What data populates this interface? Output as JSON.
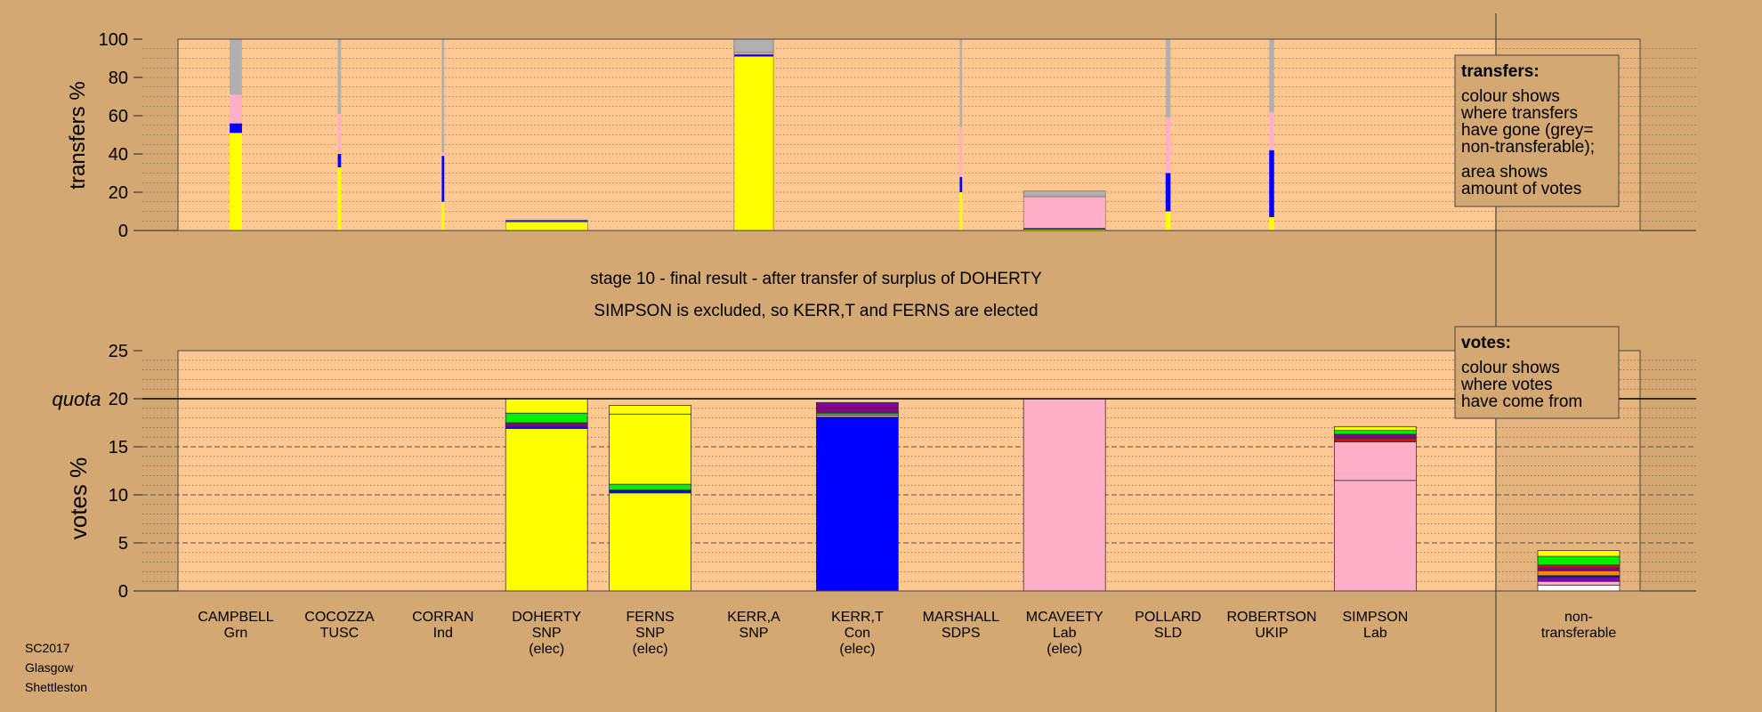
{
  "footer": {
    "line1": "SC2017",
    "line2": "Glasgow",
    "line3": "Shettleston"
  },
  "title": {
    "line1": "stage 10 - final result - after transfer of surplus of DOHERTY",
    "line2": "SIMPSON is excluded, so KERR,T and FERNS are elected"
  },
  "legends": {
    "transfers": {
      "heading": "transfers:",
      "lines": [
        "colour shows",
        "where transfers",
        "have gone (grey=",
        "non-transferable);",
        "area shows",
        "amount of votes"
      ]
    },
    "votes": {
      "heading": "votes:",
      "lines": [
        "colour shows",
        "where votes",
        "have come from"
      ]
    }
  },
  "colors": {
    "background": "#d4a872",
    "plot_bg": "#ffc890",
    "quota_line": "#000000",
    "SNP": "#ffff00",
    "Con": "#0000ff",
    "Lab": "#ffb0c8",
    "Grn": "#00ee00",
    "TUSC": "#d01010",
    "Ind": "#880088",
    "SDPS": "#ffffff",
    "SLD": "#ff8800",
    "UKIP": "#8800aa",
    "nontransferable": "#b0b0b0"
  },
  "chart_data": [
    {
      "type": "bar",
      "subtype": "stacked-variable-width",
      "ylabel": "transfers %",
      "ylim": [
        0,
        100
      ],
      "yticks": [
        0,
        20,
        40,
        60,
        80,
        100
      ],
      "grid": true,
      "categories": [
        "CAMPBELL",
        "COCOZZA",
        "CORRAN",
        "DOHERTY",
        "FERNS",
        "KERR,A",
        "KERR,T",
        "MARSHALL",
        "MCAVEETY",
        "POLLARD",
        "ROBERTSON",
        "SIMPSON"
      ],
      "bars": [
        {
          "category": "CAMPBELL",
          "width_rel": 0.15,
          "segments": [
            {
              "color": "SNP",
              "value": 51
            },
            {
              "color": "Con",
              "value": 5
            },
            {
              "color": "Lab",
              "value": 15
            },
            {
              "color": "nontransferable",
              "value": 29
            }
          ]
        },
        {
          "category": "COCOZZA",
          "width_rel": 0.04,
          "segments": [
            {
              "color": "SNP",
              "value": 33
            },
            {
              "color": "Con",
              "value": 7
            },
            {
              "color": "Lab",
              "value": 21
            },
            {
              "color": "nontransferable",
              "value": 39
            }
          ]
        },
        {
          "category": "CORRAN",
          "width_rel": 0.03,
          "segments": [
            {
              "color": "SNP",
              "value": 15
            },
            {
              "color": "Con",
              "value": 24
            },
            {
              "color": "Lab",
              "value": 2
            },
            {
              "color": "nontransferable",
              "value": 59
            }
          ]
        },
        {
          "category": "DOHERTY",
          "width_rel": 1.0,
          "segments": [
            {
              "color": "SNP",
              "value": 4.5
            },
            {
              "color": "Con",
              "value": 0.5
            },
            {
              "color": "Lab",
              "value": 0.3
            },
            {
              "color": "nontransferable",
              "value": 0.2
            }
          ]
        },
        {
          "category": "FERNS",
          "width_rel": 0,
          "segments": []
        },
        {
          "category": "KERR,A",
          "width_rel": 0.48,
          "segments": [
            {
              "color": "SNP",
              "value": 91
            },
            {
              "color": "Con",
              "value": 1
            },
            {
              "color": "Lab",
              "value": 1
            },
            {
              "color": "nontransferable",
              "value": 7
            }
          ]
        },
        {
          "category": "KERR,T",
          "width_rel": 0,
          "segments": []
        },
        {
          "category": "MARSHALL",
          "width_rel": 0.03,
          "segments": [
            {
              "color": "SNP",
              "value": 20
            },
            {
              "color": "Con",
              "value": 8
            },
            {
              "color": "Lab",
              "value": 26
            },
            {
              "color": "nontransferable",
              "value": 46
            }
          ]
        },
        {
          "category": "MCAVEETY",
          "width_rel": 1.0,
          "segments": [
            {
              "color": "SNP",
              "value": 0.6
            },
            {
              "color": "Con",
              "value": 0.6
            },
            {
              "color": "Lab",
              "value": 16.5
            },
            {
              "color": "nontransferable",
              "value": 3
            }
          ]
        },
        {
          "category": "POLLARD",
          "width_rel": 0.06,
          "segments": [
            {
              "color": "SNP",
              "value": 10
            },
            {
              "color": "Con",
              "value": 20
            },
            {
              "color": "Lab",
              "value": 29
            },
            {
              "color": "nontransferable",
              "value": 41
            }
          ]
        },
        {
          "category": "ROBERTSON",
          "width_rel": 0.06,
          "segments": [
            {
              "color": "SNP",
              "value": 7
            },
            {
              "color": "Con",
              "value": 35
            },
            {
              "color": "Lab",
              "value": 20
            },
            {
              "color": "nontransferable",
              "value": 38
            }
          ]
        },
        {
          "category": "SIMPSON",
          "width_rel": 0,
          "segments": []
        }
      ]
    },
    {
      "type": "bar",
      "subtype": "stacked",
      "ylabel": "votes %",
      "ylim": [
        0,
        25
      ],
      "yticks": [
        0,
        5,
        10,
        15,
        20,
        25
      ],
      "quota": 20,
      "quota_label": "quota",
      "grid": true,
      "categories": [
        "CAMPBELL",
        "COCOZZA",
        "CORRAN",
        "DOHERTY",
        "FERNS",
        "KERR,A",
        "KERR,T",
        "MARSHALL",
        "MCAVEETY",
        "POLLARD",
        "ROBERTSON",
        "SIMPSON",
        "non-transferable"
      ],
      "category_lines": [
        [
          "CAMPBELL",
          "Grn"
        ],
        [
          "COCOZZA",
          "TUSC"
        ],
        [
          "CORRAN",
          "Ind"
        ],
        [
          "DOHERTY",
          "SNP",
          "(elec)"
        ],
        [
          "FERNS",
          "SNP",
          "(elec)"
        ],
        [
          "KERR,A",
          "SNP"
        ],
        [
          "KERR,T",
          "Con",
          "(elec)"
        ],
        [
          "MARSHALL",
          "SDPS"
        ],
        [
          "MCAVEETY",
          "Lab",
          "(elec)"
        ],
        [
          "POLLARD",
          "SLD"
        ],
        [
          "ROBERTSON",
          "UKIP"
        ],
        [
          "SIMPSON",
          "Lab"
        ],
        [
          "non-",
          "transferable"
        ]
      ],
      "series": [
        {
          "category": "DOHERTY",
          "segments": [
            {
              "color": "SNP",
              "value": 16.9
            },
            {
              "color": "Con",
              "value": 0.2
            },
            {
              "color": "Grn",
              "value": 0
            },
            {
              "color": "Ind",
              "value": 0.3
            },
            {
              "color": "TUSC",
              "value": 0.1
            },
            {
              "color": "Grn",
              "value": 1.0
            },
            {
              "color": "SNP",
              "value": 1.5
            }
          ]
        },
        {
          "category": "FERNS",
          "segments": [
            {
              "color": "SNP",
              "value": 10.2
            },
            {
              "color": "Con",
              "value": 0.3
            },
            {
              "color": "Grn",
              "value": 0.6
            },
            {
              "color": "SNP",
              "value": 7.3
            },
            {
              "color": "SNP",
              "value": 0.9
            }
          ]
        },
        {
          "category": "KERR,T",
          "segments": [
            {
              "color": "Con",
              "value": 18.1
            },
            {
              "color": "Lab",
              "value": 0.2
            },
            {
              "color": "Grn",
              "value": 0.2
            },
            {
              "color": "TUSC",
              "value": 0.1
            },
            {
              "color": "Ind",
              "value": 0.5
            },
            {
              "color": "UKIP",
              "value": 0.5
            }
          ]
        },
        {
          "category": "MCAVEETY",
          "segments": [
            {
              "color": "Lab",
              "value": 20.0
            }
          ]
        },
        {
          "category": "SIMPSON",
          "segments": [
            {
              "color": "Lab",
              "value": 11.5
            },
            {
              "color": "Lab",
              "value": 4.0
            },
            {
              "color": "TUSC",
              "value": 0.4
            },
            {
              "color": "Ind",
              "value": 0.4
            },
            {
              "color": "Grn",
              "value": 0.4
            },
            {
              "color": "SNP",
              "value": 0.4
            }
          ]
        },
        {
          "category": "non-transferable",
          "segments": [
            {
              "color": "SDPS",
              "value": 0.6
            },
            {
              "color": "Lab",
              "value": 0.4
            },
            {
              "color": "UKIP",
              "value": 0.4
            },
            {
              "color": "Con",
              "value": 0.2
            },
            {
              "color": "SLD",
              "value": 0.5
            },
            {
              "color": "Ind",
              "value": 0.3
            },
            {
              "color": "TUSC",
              "value": 0.3
            },
            {
              "color": "Grn",
              "value": 0.9
            },
            {
              "color": "SNP",
              "value": 0.6
            }
          ]
        }
      ]
    }
  ]
}
